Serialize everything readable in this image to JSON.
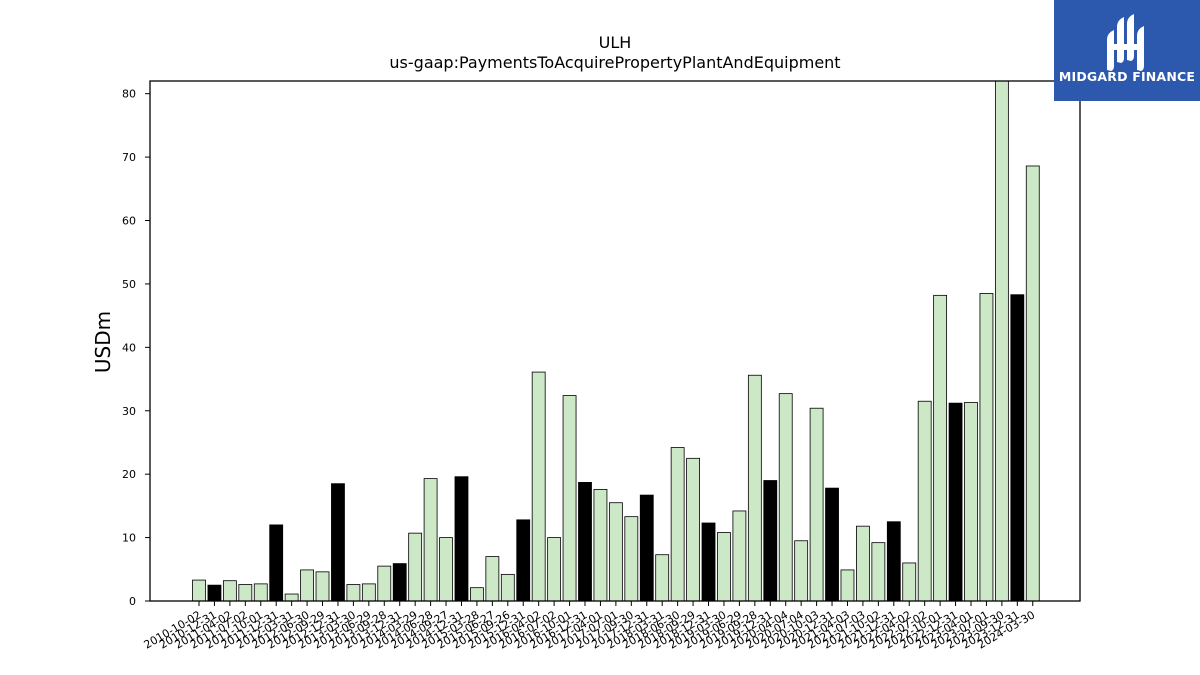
{
  "chart_data": {
    "type": "bar",
    "title": "ULH",
    "subtitle": "us-gaap:PaymentsToAcquirePropertyPlantAndEquipment",
    "xlabel": "",
    "ylabel": "USDm",
    "ylim": [
      0,
      82
    ],
    "yticks": [
      0,
      10,
      20,
      30,
      40,
      50,
      60,
      70,
      80
    ],
    "grid": false,
    "colors": {
      "quarter": "#cce8c6",
      "annual": "#000000",
      "edge": "#000000"
    },
    "categories": [
      "2010-10-02",
      "2010-12-31",
      "2011-04-02",
      "2011-07-02",
      "2011-10-01",
      "2011-12-31",
      "2012-03-31",
      "2012-06-30",
      "2012-09-29",
      "2012-12-31",
      "2013-03-30",
      "2013-06-29",
      "2013-09-28",
      "2013-12-31",
      "2014-03-29",
      "2014-06-28",
      "2014-09-27",
      "2014-12-31",
      "2015-03-28",
      "2015-06-27",
      "2015-09-26",
      "2015-12-31",
      "2016-04-02",
      "2016-07-02",
      "2016-10-01",
      "2016-12-31",
      "2017-04-01",
      "2017-07-01",
      "2017-09-30",
      "2017-12-31",
      "2018-03-31",
      "2018-06-30",
      "2018-09-29",
      "2018-12-31",
      "2019-03-30",
      "2019-06-29",
      "2019-09-28",
      "2019-12-31",
      "2020-04-04",
      "2020-07-04",
      "2020-10-03",
      "2020-12-31",
      "2021-04-03",
      "2021-07-03",
      "2021-10-02",
      "2021-12-31",
      "2022-04-02",
      "2022-07-02",
      "2022-10-01",
      "2022-12-31",
      "2023-04-01",
      "2023-07-01",
      "2023-09-30",
      "2023-12-31",
      "2024-03-30"
    ],
    "values": [
      3.3,
      2.5,
      3.2,
      2.6,
      2.7,
      12.0,
      1.1,
      4.9,
      4.6,
      18.5,
      2.6,
      2.7,
      5.5,
      5.9,
      10.7,
      19.3,
      10.0,
      19.6,
      2.1,
      7.0,
      4.2,
      12.8,
      36.1,
      10.0,
      32.4,
      18.7,
      17.6,
      15.5,
      13.3,
      16.7,
      7.3,
      24.2,
      22.5,
      12.3,
      10.8,
      14.2,
      35.6,
      19.0,
      32.7,
      9.5,
      30.4,
      17.8,
      4.9,
      11.8,
      9.2,
      12.5,
      6.0,
      31.5,
      48.2,
      31.2,
      31.3,
      48.5,
      82.0,
      48.3,
      68.6
    ],
    "annual": [
      false,
      true,
      false,
      false,
      false,
      true,
      false,
      false,
      false,
      true,
      false,
      false,
      false,
      true,
      false,
      false,
      false,
      true,
      false,
      false,
      false,
      true,
      false,
      false,
      false,
      true,
      false,
      false,
      false,
      true,
      false,
      false,
      false,
      true,
      false,
      false,
      false,
      true,
      false,
      false,
      false,
      true,
      false,
      false,
      false,
      true,
      false,
      false,
      false,
      true,
      false,
      false,
      false,
      true,
      false
    ]
  },
  "logo": {
    "text": "MIDGARD FINANCE",
    "icon": "midgard-logo-icon",
    "bg_color": "#2c58ad"
  }
}
